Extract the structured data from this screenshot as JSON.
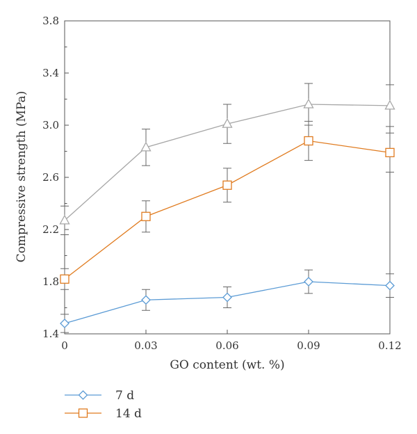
{
  "chart_data": {
    "type": "line",
    "title": "",
    "xlabel": "GO content (wt. %)",
    "ylabel": "Compressive strength (MPa)",
    "x": [
      0,
      0.03,
      0.06,
      0.09,
      0.12
    ],
    "x_tick_labels": [
      "0",
      "0.03",
      "0.06",
      "0.09",
      "0.12"
    ],
    "y_tick_labels": [
      "1.4",
      "1.8",
      "2.2",
      "2.6",
      "3.0",
      "3.4",
      "3.8"
    ],
    "xlim": [
      0,
      0.12
    ],
    "ylim": [
      1.4,
      3.8
    ],
    "grid": false,
    "legend_position": "bottom-left",
    "series": [
      {
        "name": "7 d",
        "color": "#5b9bd5",
        "marker": "diamond",
        "values": [
          1.48,
          1.66,
          1.68,
          1.8,
          1.77
        ],
        "errors": [
          0.07,
          0.08,
          0.08,
          0.09,
          0.09
        ]
      },
      {
        "name": "14 d",
        "color": "#e07b1f",
        "marker": "square",
        "values": [
          1.82,
          2.3,
          2.54,
          2.88,
          2.79
        ],
        "errors": [
          0.08,
          0.12,
          0.13,
          0.15,
          0.15
        ]
      },
      {
        "name": "",
        "color": "#a6a6a6",
        "marker": "triangle",
        "values": [
          2.27,
          2.83,
          3.01,
          3.16,
          3.15
        ],
        "errors": [
          0.11,
          0.14,
          0.15,
          0.16,
          0.16
        ]
      }
    ]
  }
}
